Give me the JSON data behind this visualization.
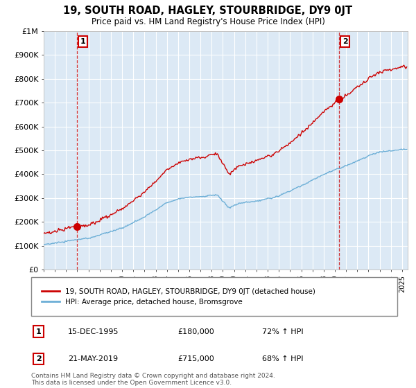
{
  "title": "19, SOUTH ROAD, HAGLEY, STOURBRIDGE, DY9 0JT",
  "subtitle": "Price paid vs. HM Land Registry's House Price Index (HPI)",
  "hpi_label": "HPI: Average price, detached house, Bromsgrove",
  "property_label": "19, SOUTH ROAD, HAGLEY, STOURBRIDGE, DY9 0JT (detached house)",
  "annotation1_date": "15-DEC-1995",
  "annotation1_price": 180000,
  "annotation1_text": "72% ↑ HPI",
  "annotation2_date": "21-MAY-2019",
  "annotation2_price": 715000,
  "annotation2_text": "68% ↑ HPI",
  "footnote": "Contains HM Land Registry data © Crown copyright and database right 2024.\nThis data is licensed under the Open Government Licence v3.0.",
  "hpi_color": "#6baed6",
  "property_color": "#cc0000",
  "chart_bg_color": "#dce9f5",
  "background_color": "#ffffff",
  "grid_color": "#ffffff",
  "ylim": [
    0,
    1000000
  ],
  "ytick_values": [
    0,
    100000,
    200000,
    300000,
    400000,
    500000,
    600000,
    700000,
    800000,
    900000,
    1000000
  ],
  "ytick_labels": [
    "£0",
    "£100K",
    "£200K",
    "£300K",
    "£400K",
    "£500K",
    "£600K",
    "£700K",
    "£800K",
    "£900K",
    "£1M"
  ],
  "xlim_start": 1993.0,
  "xlim_end": 2025.5,
  "sale1_year": 1995.958,
  "sale1_price": 180000,
  "sale2_year": 2019.375,
  "sale2_price": 715000
}
